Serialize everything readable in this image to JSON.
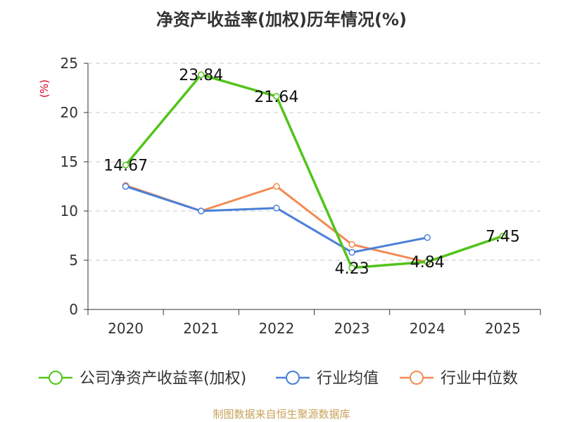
{
  "chart_data": {
    "type": "line",
    "title": "净资产收益率(加权)历年情况(%)",
    "ylabel": "(%)",
    "xlabel": "",
    "ylim": [
      0,
      25
    ],
    "yticks": [
      0,
      5,
      10,
      15,
      20,
      25
    ],
    "categories": [
      "2020",
      "2021",
      "2022",
      "2023",
      "2024",
      "2025"
    ],
    "series": [
      {
        "name": "公司净资产收益率(加权)",
        "color": "#52c41a",
        "values": [
          14.67,
          23.84,
          21.64,
          4.23,
          4.84,
          7.45
        ],
        "labels": [
          "14.67",
          "23.84",
          "21.64",
          "4.23",
          "4.84",
          "7.45"
        ]
      },
      {
        "name": "行业均值",
        "color": "#4a7fd9",
        "values": [
          12.5,
          10.0,
          10.3,
          5.8,
          7.3,
          null
        ]
      },
      {
        "name": "行业中位数",
        "color": "#f28b54",
        "values": [
          12.6,
          10.0,
          12.5,
          6.6,
          4.8,
          null
        ]
      }
    ],
    "grid": true,
    "legend_position": "bottom"
  },
  "footer": "制图数据来自恒生聚源数据库"
}
